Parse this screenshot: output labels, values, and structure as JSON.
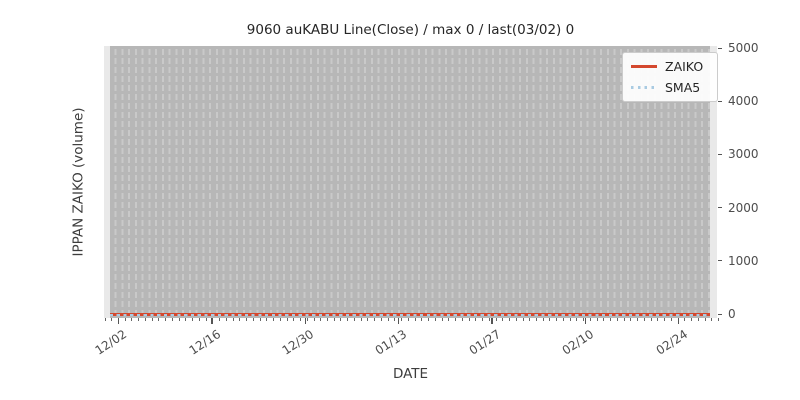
{
  "title": "9060 auKABU Line(Close) / max 0 / last(03/02) 0",
  "axes": {
    "xlabel": "DATE",
    "ylabel": "IPPAN ZAIKO (volume)"
  },
  "legend": {
    "items": [
      {
        "label": "ZAIKO",
        "color": "#d4482e",
        "style": "solid"
      },
      {
        "label": "SMA5",
        "color": "#a9cbe2",
        "style": "dotted"
      }
    ]
  },
  "colors": {
    "zaiko_line": "#d4482e",
    "sma5_line": "#a9cbe2",
    "plot_region": "#b7b7b7",
    "grid_dash": "#c9c9c9",
    "plot_margin": "#e9e9e9",
    "tick_text": "#4d4d4d",
    "figure_background": "#ffffff"
  },
  "chart_data": {
    "type": "line",
    "title": "9060 auKABU Line(Close) / max 0 / last(03/02) 0",
    "xlabel": "DATE",
    "ylabel": "IPPAN ZAIKO (volume)",
    "x_tick_labels": [
      "12/02",
      "12/16",
      "12/30",
      "01/13",
      "01/27",
      "02/10",
      "02/24"
    ],
    "x_major_interval_days": 14,
    "x_minor_interval_days": 1,
    "x_span_days": 91,
    "y_tick_labels": [
      "0",
      "1000",
      "2000",
      "3000",
      "4000",
      "5000"
    ],
    "y_tick_values": [
      0,
      1000,
      2000,
      3000,
      4000,
      5000
    ],
    "ylim": [
      0,
      5000
    ],
    "grid": {
      "vertical_daily_dashed": true,
      "horizontal": false
    },
    "legend_position": "upper right",
    "series": [
      {
        "name": "ZAIKO",
        "color": "#d4482e",
        "linestyle": "solid",
        "constant_value": 0
      },
      {
        "name": "SMA5",
        "color": "#a9cbe2",
        "linestyle": "dotted",
        "constant_value": 0
      }
    ],
    "annotations": {
      "max": 0,
      "last_date": "03/02",
      "last_value": 0
    }
  }
}
